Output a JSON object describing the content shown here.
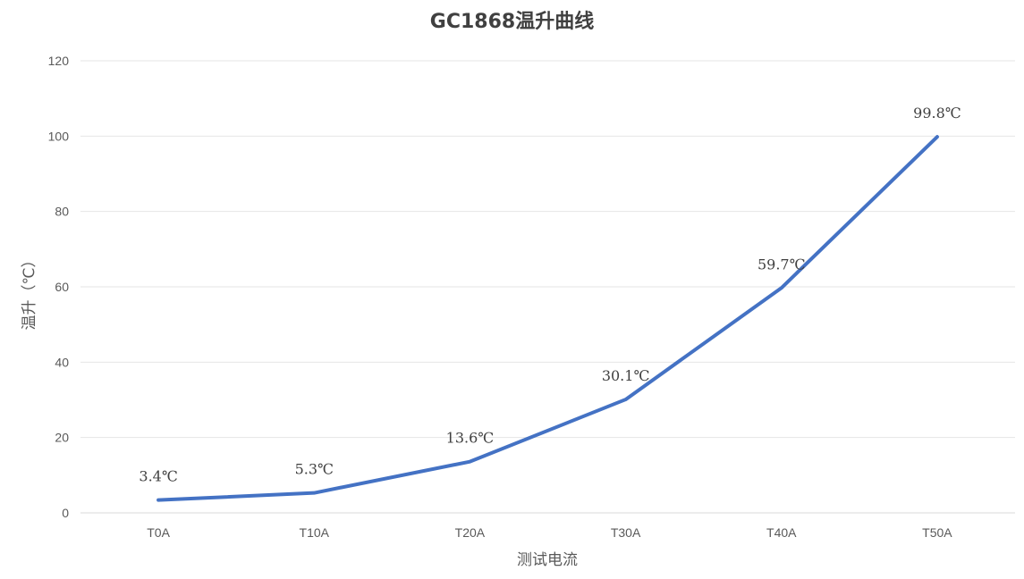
{
  "chart_data": {
    "type": "line",
    "title": "GC1868温升曲线",
    "xlabel": "测试电流",
    "ylabel": "温升（℃）",
    "categories": [
      "T0A",
      "T10A",
      "T20A",
      "T30A",
      "T40A",
      "T50A"
    ],
    "series": [
      {
        "values": [
          3.4,
          5.3,
          13.6,
          30.1,
          59.7,
          99.8
        ],
        "data_labels": [
          "3.4℃",
          "5.3℃",
          "13.6℃",
          "30.1℃",
          "59.7℃",
          "99.8℃"
        ],
        "color": "#4472c4"
      }
    ],
    "ylim": [
      0,
      120
    ],
    "yticks": [
      "0",
      "20",
      "40",
      "60",
      "80",
      "100",
      "120"
    ],
    "grid": true,
    "legend": "none"
  }
}
